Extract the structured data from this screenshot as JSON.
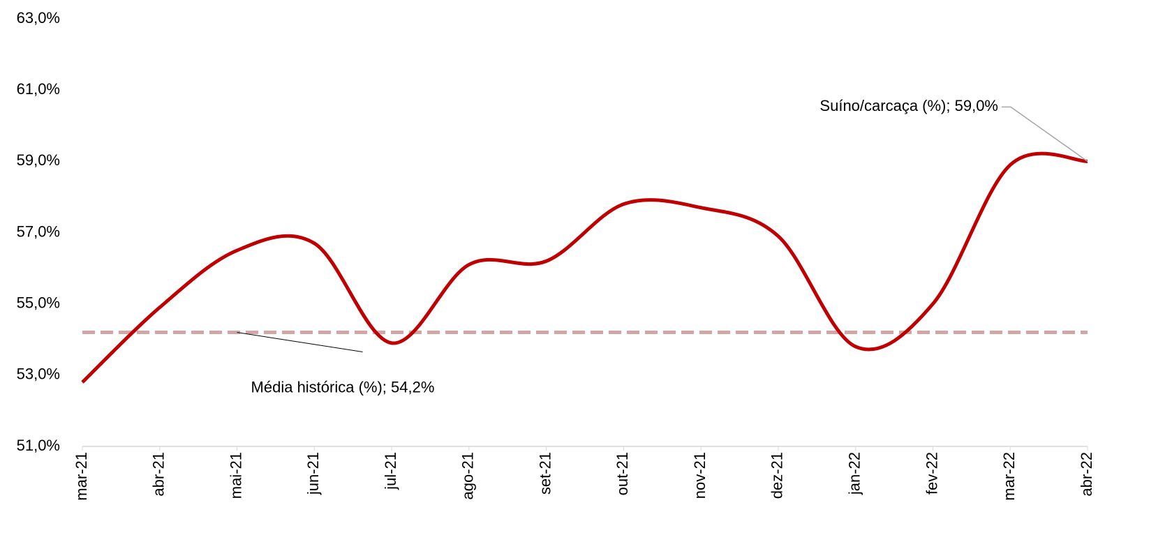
{
  "chart_data": {
    "type": "line",
    "categories": [
      "mar-21",
      "abr-21",
      "mai-21",
      "jun-21",
      "jul-21",
      "ago-21",
      "set-21",
      "out-21",
      "nov-21",
      "dez-21",
      "jan-22",
      "fev-22",
      "mar-22",
      "abr-22"
    ],
    "series": [
      {
        "name": "Suíno/carcaça (%)",
        "color": "#c00000",
        "smooth": true,
        "values": [
          52.8,
          54.9,
          56.5,
          56.7,
          53.9,
          56.1,
          56.2,
          57.8,
          57.7,
          56.9,
          53.8,
          55.0,
          58.9,
          59.0
        ],
        "value_labels": [
          null,
          null,
          null,
          null,
          null,
          null,
          null,
          null,
          null,
          null,
          null,
          null,
          null,
          "Suíno/carcaça (%); 59,0%"
        ]
      },
      {
        "name": "Média histórica (%)",
        "color": "#d4a5a5",
        "dashed": true,
        "values": [
          54.2,
          54.2,
          54.2,
          54.2,
          54.2,
          54.2,
          54.2,
          54.2,
          54.2,
          54.2,
          54.2,
          54.2,
          54.2,
          54.2
        ],
        "value_labels": [
          null,
          null,
          "Média histórica (%); 54,2%",
          null,
          null,
          null,
          null,
          null,
          null,
          null,
          null,
          null,
          null,
          null
        ]
      }
    ],
    "ylim": [
      51,
      63
    ],
    "yticks": [
      {
        "value": 51,
        "label": "51,0%"
      },
      {
        "value": 53,
        "label": "53,0%"
      },
      {
        "value": 55,
        "label": "55,0%"
      },
      {
        "value": 57,
        "label": "57,0%"
      },
      {
        "value": 59,
        "label": "59,0%"
      },
      {
        "value": 61,
        "label": "61,0%"
      },
      {
        "value": 63,
        "label": "63,0%"
      }
    ],
    "grid": false
  }
}
